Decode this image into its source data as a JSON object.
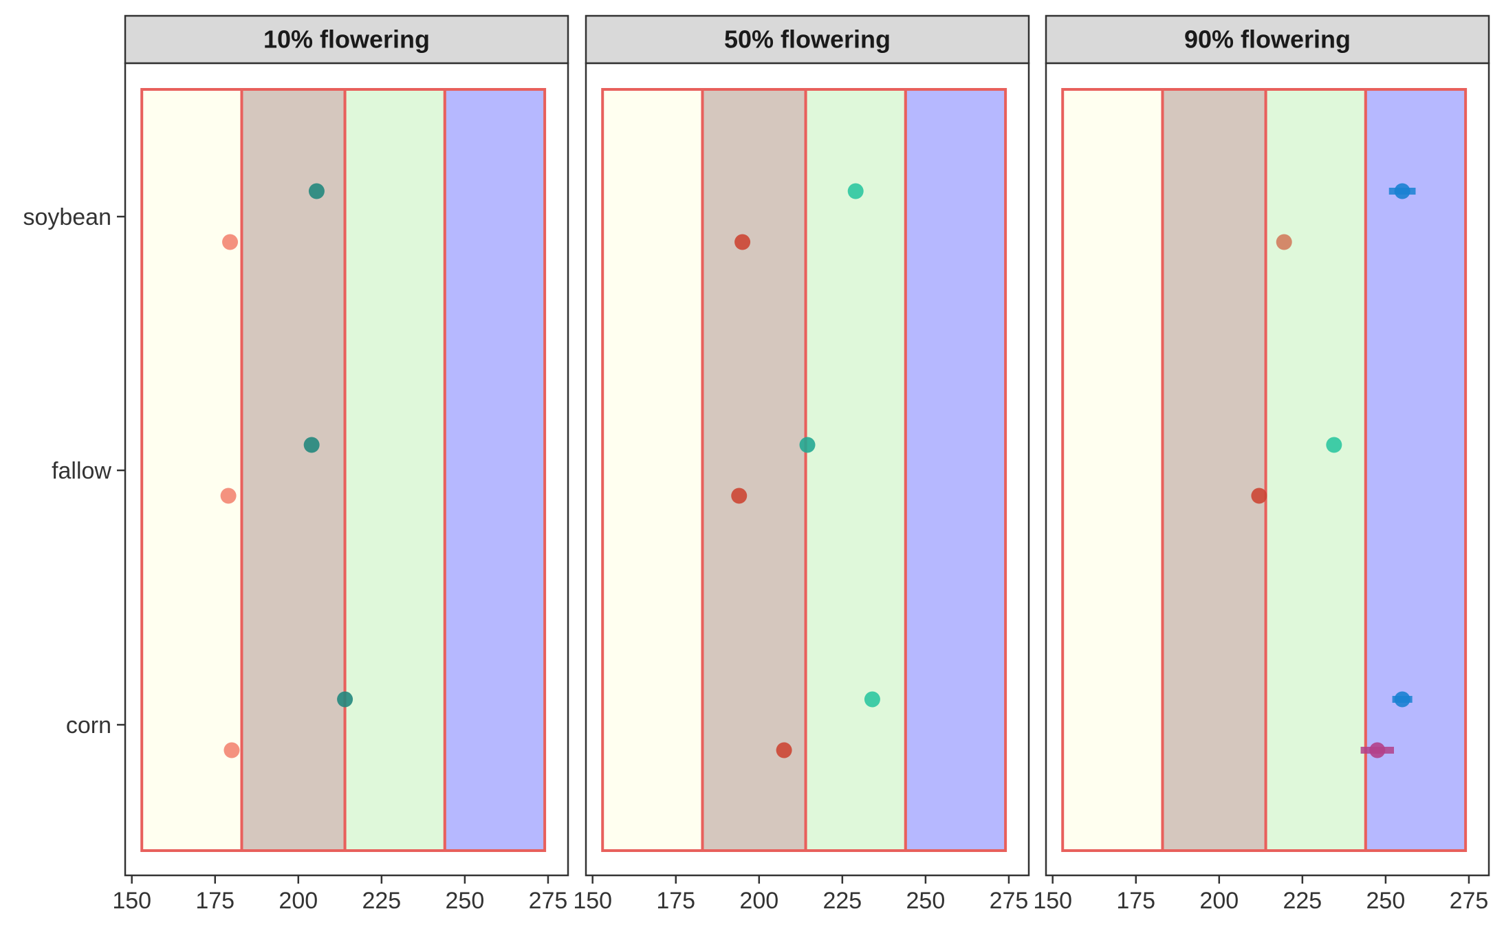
{
  "chart_data": {
    "type": "scatter",
    "facets": [
      "10% flowering",
      "50% flowering",
      "90% flowering"
    ],
    "categories": [
      "soybean",
      "fallow",
      "corn"
    ],
    "x_ticks": [
      150,
      175,
      200,
      225,
      250,
      275
    ],
    "xlim": [
      148,
      281
    ],
    "x_tick_labels": [
      "150",
      "175",
      "200",
      "225",
      "250",
      "275",
      "150",
      "175",
      "200",
      "225",
      "250",
      "275",
      "150",
      "175",
      "200",
      "225",
      "250",
      "275"
    ],
    "bands": [
      {
        "from": 153,
        "to": 183,
        "color": "#fffff0"
      },
      {
        "from": 183,
        "to": 214,
        "color": "#d5c7be"
      },
      {
        "from": 214,
        "to": 244,
        "color": "#dff8da"
      },
      {
        "from": 244,
        "to": 274,
        "color": "#b6b8ff"
      }
    ],
    "band_outline_color": "#e8605c",
    "panels": [
      {
        "points": [
          {
            "category": "soybean",
            "level": "upper",
            "x": 205.5,
            "color": "#23877d"
          },
          {
            "category": "soybean",
            "level": "lower",
            "x": 179.5,
            "color": "#f38672"
          },
          {
            "category": "fallow",
            "level": "upper",
            "x": 204.0,
            "color": "#23877d"
          },
          {
            "category": "fallow",
            "level": "lower",
            "x": 179.0,
            "color": "#f38672"
          },
          {
            "category": "corn",
            "level": "upper",
            "x": 214.0,
            "color": "#23877d"
          },
          {
            "category": "corn",
            "level": "lower",
            "x": 180.0,
            "color": "#f38672"
          }
        ]
      },
      {
        "points": [
          {
            "category": "soybean",
            "level": "upper",
            "x": 229.0,
            "color": "#2ec6a0"
          },
          {
            "category": "soybean",
            "level": "lower",
            "x": 195.0,
            "color": "#cc4634"
          },
          {
            "category": "fallow",
            "level": "upper",
            "x": 214.5,
            "color": "#23a892"
          },
          {
            "category": "fallow",
            "level": "lower",
            "x": 194.0,
            "color": "#cc4634"
          },
          {
            "category": "corn",
            "level": "upper",
            "x": 234.0,
            "color": "#2ec6a0"
          },
          {
            "category": "corn",
            "level": "lower",
            "x": 207.5,
            "color": "#cc4634"
          }
        ]
      },
      {
        "points": [
          {
            "category": "soybean",
            "level": "upper",
            "x": 255.0,
            "err": [
              251.0,
              259.0
            ],
            "color": "#1a81d2"
          },
          {
            "category": "soybean",
            "level": "lower",
            "x": 219.5,
            "color": "#d17c5d"
          },
          {
            "category": "fallow",
            "level": "upper",
            "x": 234.5,
            "color": "#2ec6a0"
          },
          {
            "category": "fallow",
            "level": "lower",
            "x": 212.0,
            "color": "#cc4634"
          },
          {
            "category": "corn",
            "level": "upper",
            "x": 255.0,
            "err": [
              252.0,
              258.0
            ],
            "color": "#1a81d2"
          },
          {
            "category": "corn",
            "level": "lower",
            "x": 247.5,
            "err": [
              242.5,
              252.5
            ],
            "color": "#b2408a"
          }
        ]
      }
    ],
    "grid": false,
    "legend": "none"
  }
}
